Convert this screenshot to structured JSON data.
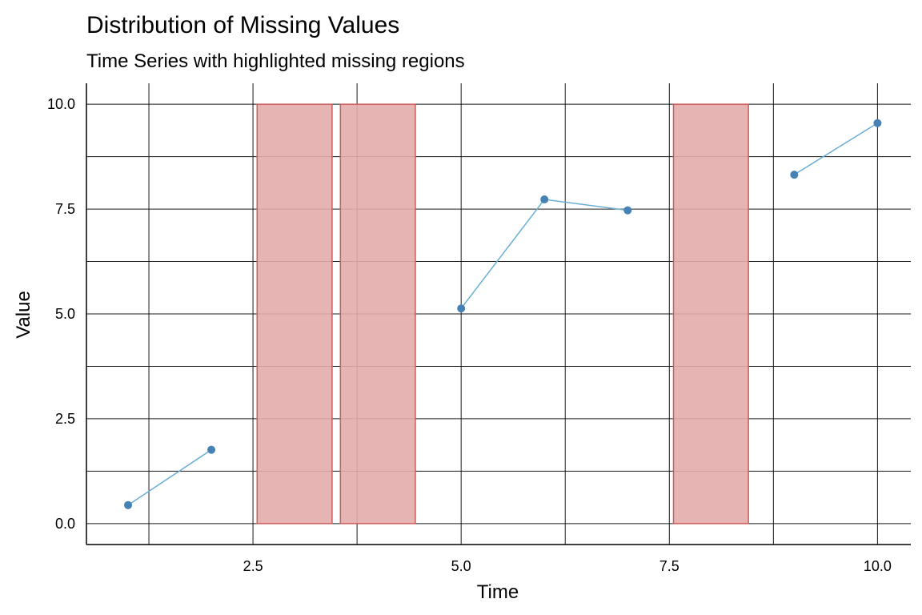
{
  "chart_data": {
    "type": "line",
    "title": "Distribution of Missing Values",
    "subtitle": "Time Series with highlighted missing regions",
    "xlabel": "Time",
    "ylabel": "Value",
    "xlim": [
      0.5,
      10.4
    ],
    "ylim": [
      -0.5,
      10.5
    ],
    "x_ticks": [
      2.5,
      5.0,
      7.5,
      10.0
    ],
    "x_tick_labels": [
      "2.5",
      "5.0",
      "7.5",
      "10.0"
    ],
    "y_ticks": [
      0.0,
      2.5,
      5.0,
      7.5,
      10.0
    ],
    "y_tick_labels": [
      "0.0",
      "2.5",
      "5.0",
      "7.5",
      "10.0"
    ],
    "grid": true,
    "series": [
      {
        "color": "#6aaed6",
        "point_color": "#4682b4",
        "x": [
          1,
          2,
          3,
          4,
          5,
          6,
          7,
          8,
          9,
          10
        ],
        "y": [
          0.44,
          1.76,
          null,
          null,
          5.13,
          7.73,
          7.47,
          null,
          8.32,
          9.55
        ]
      }
    ],
    "missing_regions": [
      {
        "x_start": 2.55,
        "x_end": 3.45,
        "y_min": 0,
        "y_max": 10
      },
      {
        "x_start": 3.55,
        "x_end": 4.45,
        "y_min": 0,
        "y_max": 10
      },
      {
        "x_start": 7.55,
        "x_end": 8.45,
        "y_min": 0,
        "y_max": 10
      }
    ],
    "region_fill": "#e3acab",
    "region_stroke": "#cd5c5c"
  }
}
